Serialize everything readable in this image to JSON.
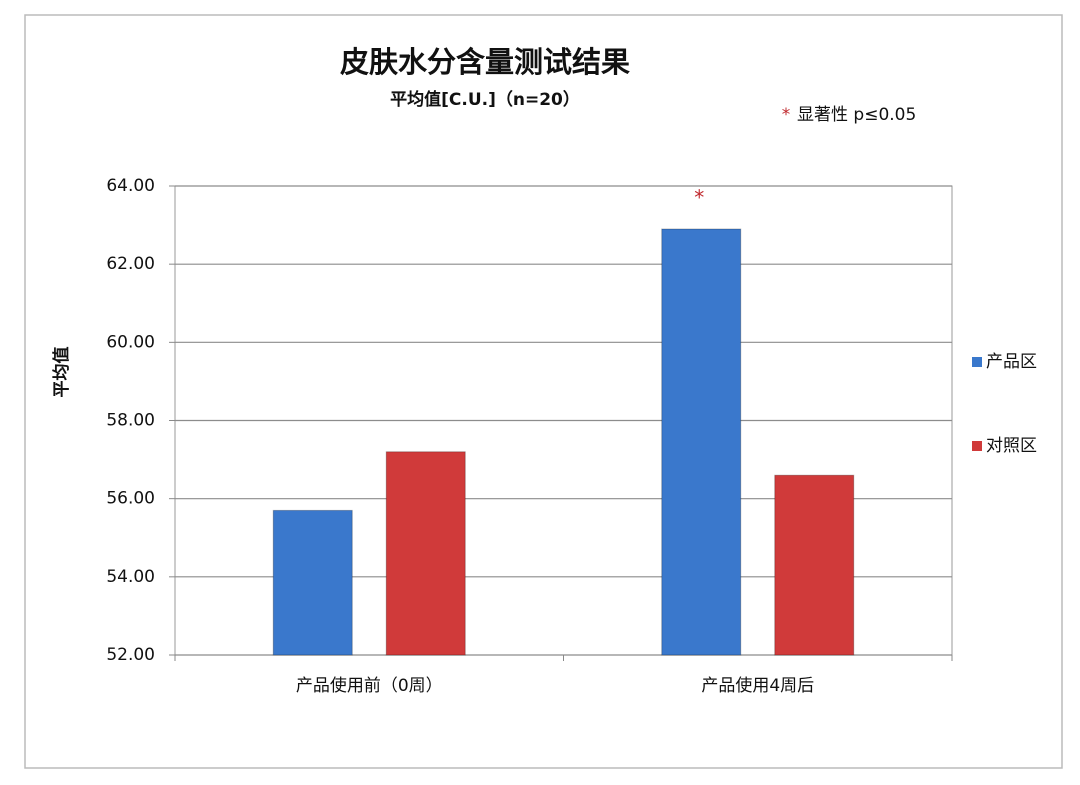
{
  "chart_data": {
    "type": "bar",
    "title": "皮肤水分含量测试结果",
    "subtitle": "平均值[C.U.]（n=20）",
    "y_label": "平均值",
    "significance_marker": "*",
    "significance_note": "显著性  p≤0.05",
    "categories": [
      "产品使用前（0周）",
      "产品使用4周后"
    ],
    "series": [
      {
        "name": "产品区",
        "color": "#3a78cc",
        "values": [
          55.7,
          62.9
        ]
      },
      {
        "name": "对照区",
        "color": "#d03a3a",
        "values": [
          57.2,
          56.6
        ]
      }
    ],
    "ylim": [
      52,
      64
    ],
    "yticks": [
      {
        "value": 52,
        "label": "52.00"
      },
      {
        "value": 54,
        "label": "54.00"
      },
      {
        "value": 56,
        "label": "56.00"
      },
      {
        "value": 58,
        "label": "58.00"
      },
      {
        "value": 60,
        "label": "60.00"
      },
      {
        "value": 62,
        "label": "62.00"
      },
      {
        "value": 64,
        "label": "64.00"
      }
    ],
    "grid": true
  }
}
